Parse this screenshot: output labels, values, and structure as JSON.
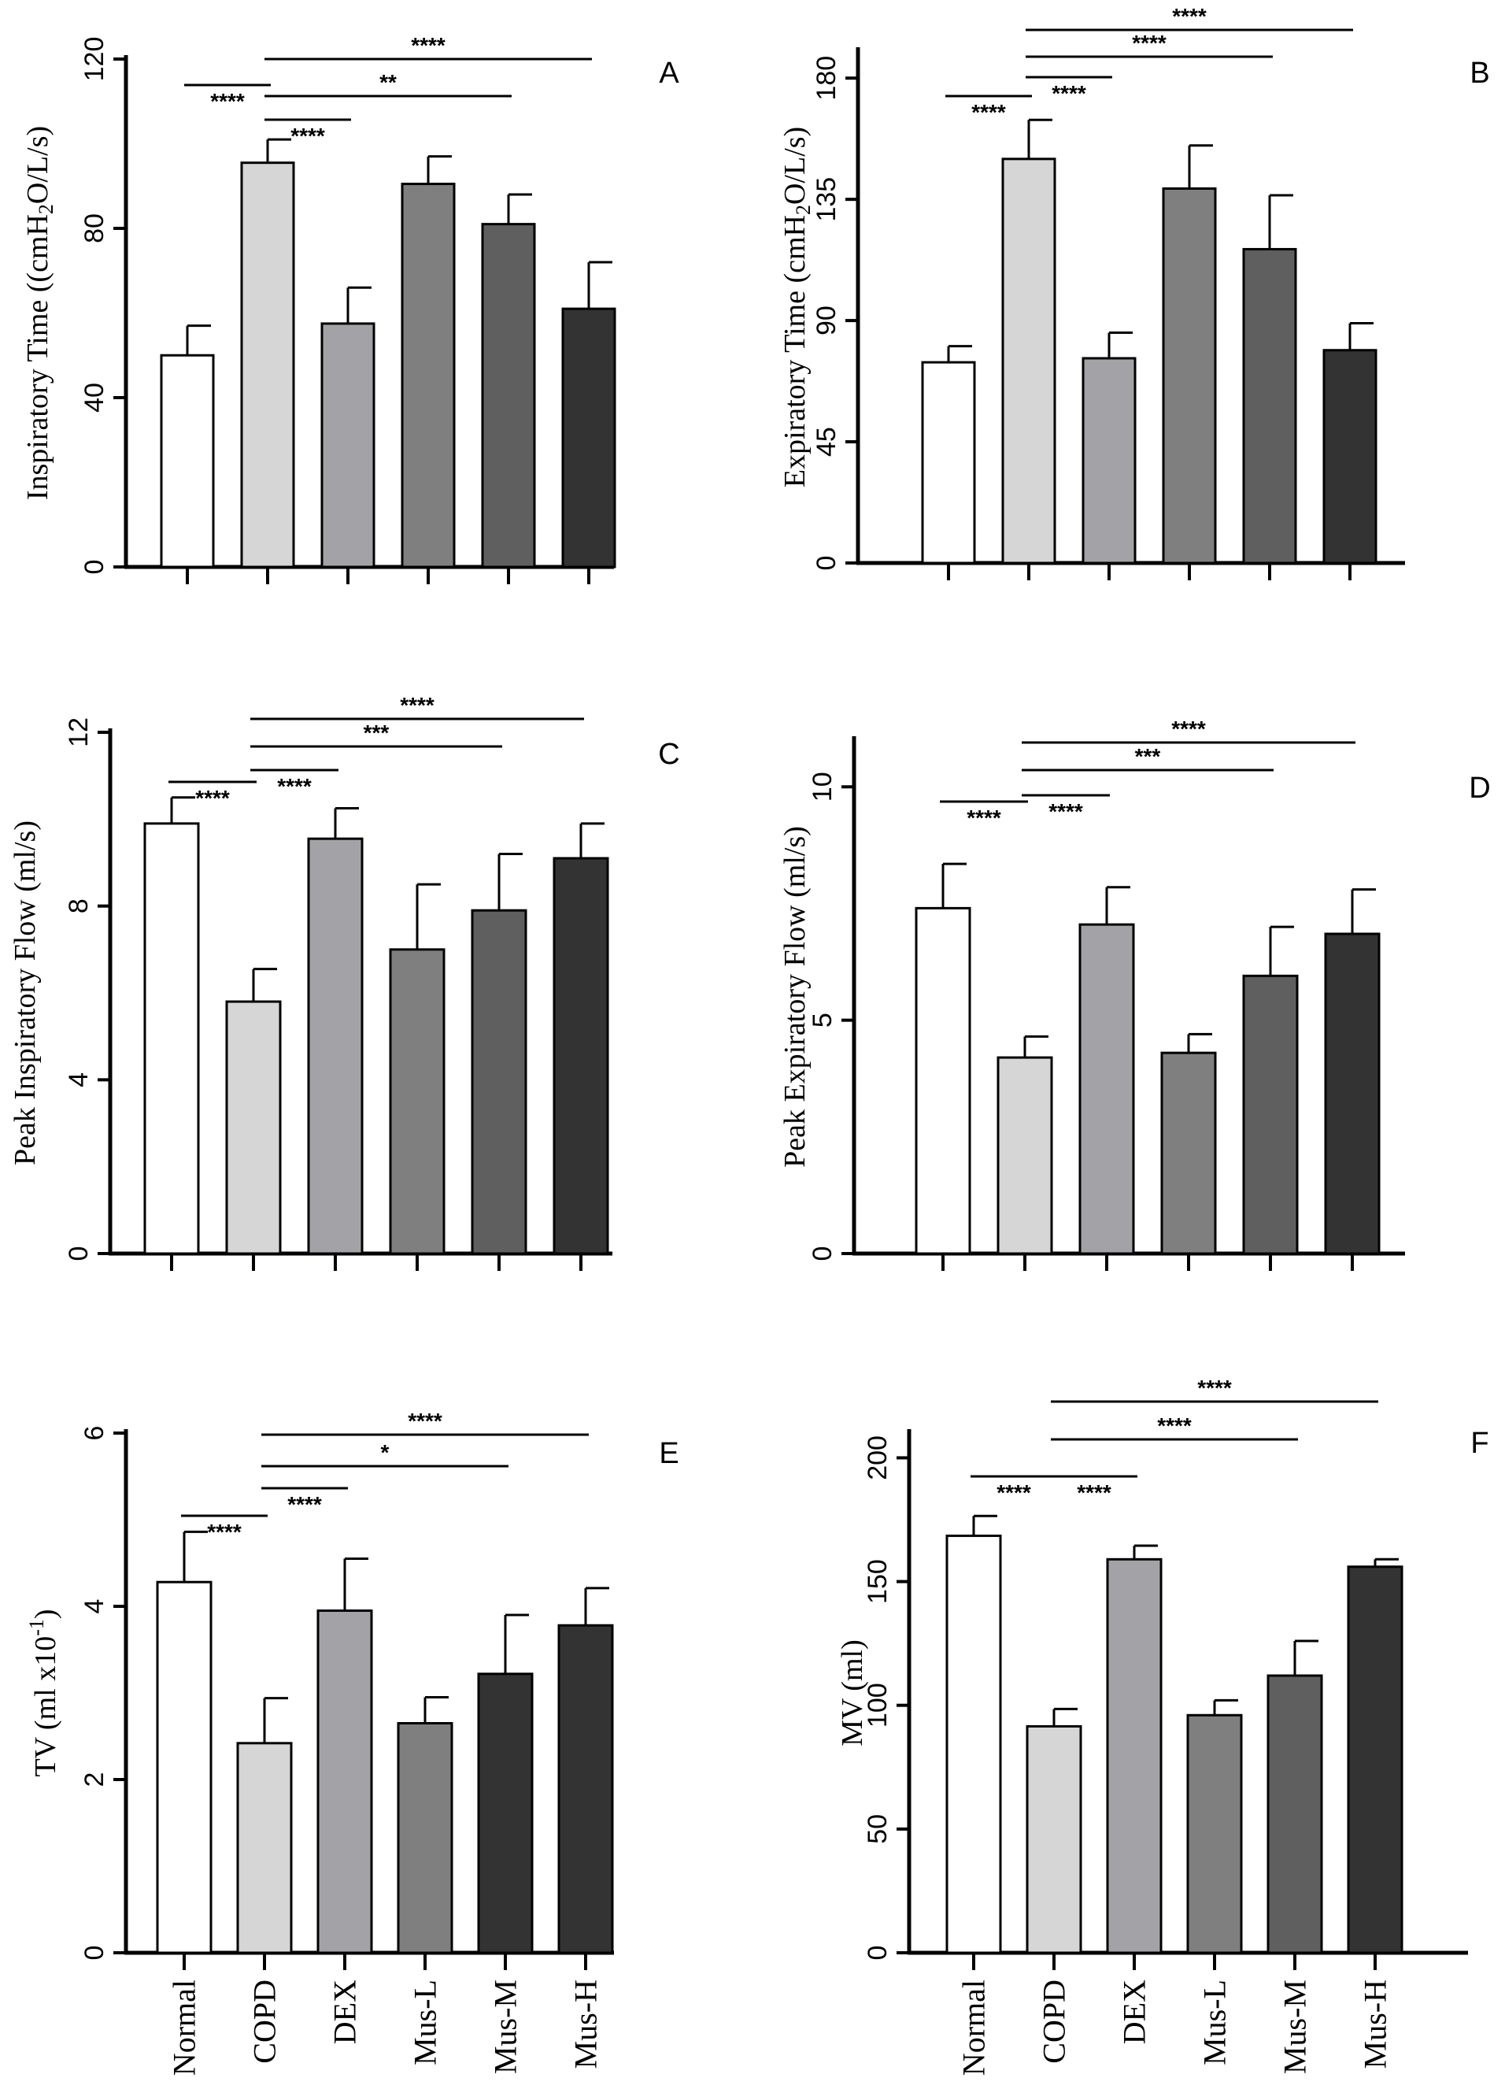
{
  "categories": [
    "Normal",
    "COPD",
    "DEX",
    "Mus-L",
    "Mus-M",
    "Mus-H"
  ],
  "colors": {
    "axis": "#000000",
    "bar_edge": "#000000",
    "sig_line": "#000000"
  },
  "chart_data": [
    {
      "type": "bar",
      "panel": "A",
      "title": "",
      "ylabel": "Inspiratory Time ((cmH",
      "ylabel_sub": "2",
      "ylabel_suffix": "O/L/s)",
      "ylim": [
        0,
        120
      ],
      "yticks": [
        0,
        40,
        80,
        120
      ],
      "yticklabels": [
        "0",
        "40",
        "80",
        "120"
      ],
      "categories": [
        "Normal",
        "COPD",
        "DEX",
        "Mus-L",
        "Mus-M",
        "Mus-H"
      ],
      "values": [
        50,
        95.5,
        57.5,
        90.5,
        81,
        61
      ],
      "errors": [
        7,
        5.5,
        8.5,
        6.5,
        7,
        11
      ],
      "bar_colors": [
        "#ffffff",
        "#d6d6d6",
        "#a3a3a7",
        "#7f7f7f",
        "#5f5f5f",
        "#333333"
      ],
      "show_xlabels": false,
      "significance": [
        {
          "from": 0,
          "to": 1,
          "label": "****"
        },
        {
          "from": 1,
          "to": 2,
          "label": "****"
        },
        {
          "from": 1,
          "to": 4,
          "label": "**"
        },
        {
          "from": 1,
          "to": 5,
          "label": "****"
        }
      ]
    },
    {
      "type": "bar",
      "panel": "B",
      "title": "",
      "ylabel": "Expiratory Time (cmH",
      "ylabel_sub": "2",
      "ylabel_suffix": "O/L/s)",
      "ylim": [
        0,
        190
      ],
      "yticks": [
        0,
        45,
        90,
        135,
        180
      ],
      "yticklabels": [
        "0",
        "45",
        "90",
        "135",
        "180"
      ],
      "categories": [
        "Normal",
        "COPD",
        "DEX",
        "Mus-L",
        "Mus-M",
        "Mus-H"
      ],
      "values": [
        74.5,
        150,
        76,
        139,
        116.5,
        79
      ],
      "errors": [
        6,
        14.5,
        9.5,
        16,
        20,
        10
      ],
      "bar_colors": [
        "#ffffff",
        "#d6d6d6",
        "#a3a3a7",
        "#7f7f7f",
        "#5f5f5f",
        "#333333"
      ],
      "show_xlabels": false,
      "significance": [
        {
          "from": 0,
          "to": 1,
          "label": "****"
        },
        {
          "from": 1,
          "to": 2,
          "label": "****"
        },
        {
          "from": 1,
          "to": 4,
          "label": "****"
        },
        {
          "from": 1,
          "to": 5,
          "label": "****"
        }
      ]
    },
    {
      "type": "bar",
      "panel": "C",
      "title": "",
      "ylabel": "Peak Inspiratory Flow (ml/s)",
      "ylabel_sub": "",
      "ylabel_suffix": "",
      "ylim": [
        0,
        12
      ],
      "yticks": [
        0,
        4,
        8,
        12
      ],
      "yticklabels": [
        "0",
        "4",
        "8",
        "12"
      ],
      "categories": [
        "Normal",
        "COPD",
        "DEX",
        "Mus-L",
        "Mus-M",
        "Mus-H"
      ],
      "values": [
        9.9,
        5.8,
        9.55,
        7.0,
        7.9,
        9.1
      ],
      "errors": [
        0.6,
        0.75,
        0.7,
        1.5,
        1.3,
        0.8
      ],
      "bar_colors": [
        "#ffffff",
        "#d6d6d6",
        "#a3a3a7",
        "#7f7f7f",
        "#5f5f5f",
        "#333333"
      ],
      "show_xlabels": false,
      "significance": [
        {
          "from": 0,
          "to": 1,
          "label": "****"
        },
        {
          "from": 1,
          "to": 2,
          "label": "****"
        },
        {
          "from": 1,
          "to": 4,
          "label": "***"
        },
        {
          "from": 1,
          "to": 5,
          "label": "****"
        }
      ]
    },
    {
      "type": "bar",
      "panel": "D",
      "title": "",
      "ylabel": "Peak Expiratory Flow (ml/s)",
      "ylabel_sub": "",
      "ylabel_suffix": "",
      "ylim": [
        0,
        11
      ],
      "yticks": [
        0,
        5,
        10
      ],
      "yticklabels": [
        "0",
        "5",
        "10"
      ],
      "categories": [
        "Normal",
        "COPD",
        "DEX",
        "Mus-L",
        "Mus-M",
        "Mus-H"
      ],
      "values": [
        7.4,
        4.2,
        7.05,
        4.3,
        5.95,
        6.85
      ],
      "errors": [
        0.95,
        0.45,
        0.8,
        0.4,
        1.05,
        0.95
      ],
      "bar_colors": [
        "#ffffff",
        "#d6d6d6",
        "#a3a3a7",
        "#7f7f7f",
        "#5f5f5f",
        "#333333"
      ],
      "show_xlabels": false,
      "significance": [
        {
          "from": 0,
          "to": 1,
          "label": "****"
        },
        {
          "from": 1,
          "to": 2,
          "label": "****"
        },
        {
          "from": 1,
          "to": 4,
          "label": "***"
        },
        {
          "from": 1,
          "to": 5,
          "label": "****"
        }
      ]
    },
    {
      "type": "bar",
      "panel": "E",
      "title": "",
      "ylabel": "TV (ml x10",
      "ylabel_sub": "-1",
      "ylabel_suffix": ")",
      "ylabel_sup": true,
      "ylim": [
        0,
        6
      ],
      "yticks": [
        0,
        2,
        4,
        6
      ],
      "yticklabels": [
        "0",
        "2",
        "4",
        "6"
      ],
      "categories": [
        "Normal",
        "COPD",
        "DEX",
        "Mus-L",
        "Mus-M",
        "Mus-H"
      ],
      "values": [
        4.28,
        2.42,
        3.95,
        2.65,
        3.22,
        3.78
      ],
      "errors": [
        0.58,
        0.52,
        0.6,
        0.3,
        0.68,
        0.43
      ],
      "bar_colors": [
        "#ffffff",
        "#d6d6d6",
        "#a3a3a7",
        "#7f7f7f",
        "#333333",
        "#333333"
      ],
      "show_xlabels": true,
      "significance": [
        {
          "from": 0,
          "to": 1,
          "label": "****"
        },
        {
          "from": 1,
          "to": 2,
          "label": "****"
        },
        {
          "from": 1,
          "to": 4,
          "label": "*"
        },
        {
          "from": 1,
          "to": 5,
          "label": "****"
        }
      ]
    },
    {
      "type": "bar",
      "panel": "F",
      "title": "",
      "ylabel": "MV (ml)",
      "ylabel_sub": "",
      "ylabel_suffix": "",
      "ylim": [
        0,
        210
      ],
      "yticks": [
        0,
        50,
        100,
        150,
        200
      ],
      "yticklabels": [
        "0",
        "50",
        "100",
        "150",
        "200"
      ],
      "categories": [
        "Normal",
        "COPD",
        "DEX",
        "Mus-L",
        "Mus-M",
        "Mus-H"
      ],
      "values": [
        168.5,
        91.5,
        159,
        96,
        112,
        156
      ],
      "errors": [
        8,
        7,
        5.5,
        6,
        14,
        3
      ],
      "bar_colors": [
        "#ffffff",
        "#d6d6d6",
        "#a3a3a7",
        "#7f7f7f",
        "#5f5f5f",
        "#333333"
      ],
      "show_xlabels": true,
      "significance": [
        {
          "from": 0,
          "to": 1,
          "label": "****"
        },
        {
          "from": 1,
          "to": 2,
          "label": "****"
        },
        {
          "from": 1,
          "to": 4,
          "label": "****"
        },
        {
          "from": 1,
          "to": 5,
          "label": "****"
        }
      ]
    }
  ]
}
